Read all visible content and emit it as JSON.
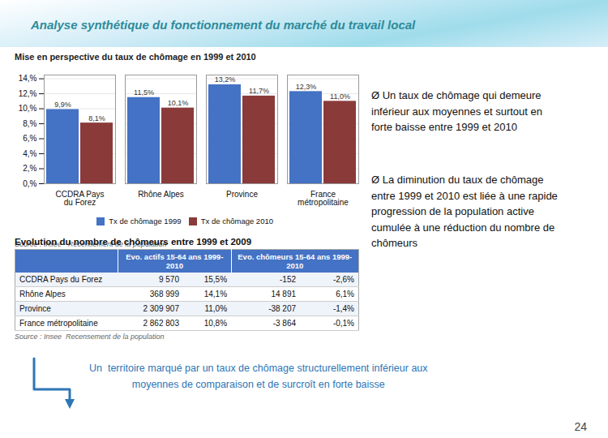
{
  "chart_data": [
    {
      "type": "bar",
      "title": "Analyse synthétique du fonctionnement du marché du travail local",
      "subtitle": "Mise en perspective du taux de chômage en 1999 et 2010",
      "categories": [
        "CCDRA Pays\ndu Forez",
        "Rhône Alpes",
        "Province",
        "France\nmétropolitaine"
      ],
      "series": [
        {
          "name": "Tx de chômage 1999",
          "color": "#4472C4",
          "values": [
            9.9,
            11.5,
            13.2,
            12.3
          ],
          "value_labels": [
            "9,9%",
            "11,5%",
            "13,2%",
            "12,3%"
          ]
        },
        {
          "name": "Tx de chômage 2010",
          "color": "#8B3A3A",
          "values": [
            8.1,
            10.1,
            11.7,
            11.0
          ],
          "value_labels": [
            "8,1%",
            "10,1%",
            "11,7%",
            "11,0%"
          ]
        }
      ],
      "ylim": [
        0,
        14.5
      ],
      "yticks": [
        {
          "value": 0,
          "label": "0,%"
        },
        {
          "value": 2,
          "label": "2,%"
        },
        {
          "value": 4,
          "label": "4,%"
        },
        {
          "value": 6,
          "label": "6,%"
        },
        {
          "value": 8,
          "label": "8,%"
        },
        {
          "value": 10,
          "label": "10,%"
        },
        {
          "value": 12,
          "label": "12,%"
        },
        {
          "value": 14,
          "label": "14,%"
        }
      ],
      "grid": true,
      "legend": "bottom",
      "data_labels": true,
      "caption": "Source : Insee - Recensement de la population",
      "annotations": [
        "Ø Un taux de chômage qui demeure\ninférieur aux moyennes et surtout en\nforte baisse entre 1999 et 2010",
        "Ø La diminution du taux de chômage\nentre 1999 et 2010 est liée à une rapide\nprogression de la population active\ncumulée à une réduction du nombre de\nchômeurs",
        "Un  territoire marqué par un taux de chômage structurellement inférieur aux\nmoyennes de comparaison et de surcroît en forte baisse",
        "24"
      ]
    },
    {
      "type": "table",
      "title": "Evolution du nombre de chômeurs entre 1999 et 2009",
      "column_groups": [
        "Evo. actifs 15-64 ans 1999-2010",
        "Evo. chômeurs 15-64 ans 1999-2010"
      ],
      "rows": [
        [
          "CCDRA Pays du Forez",
          "9 570",
          "15,5%",
          "-152",
          "-2,6%"
        ],
        [
          "Rhône Alpes",
          "368 999",
          "14,1%",
          "14 891",
          "6,1%"
        ],
        [
          "Province",
          "2 309 907",
          "11,0%",
          "-38 207",
          "-1,4%"
        ],
        [
          "France métropolitaine",
          "2 862 803",
          "10,8%",
          "-3 864",
          "-0,1%"
        ]
      ],
      "caption": "Source : Insee  Recensement de la population"
    }
  ]
}
